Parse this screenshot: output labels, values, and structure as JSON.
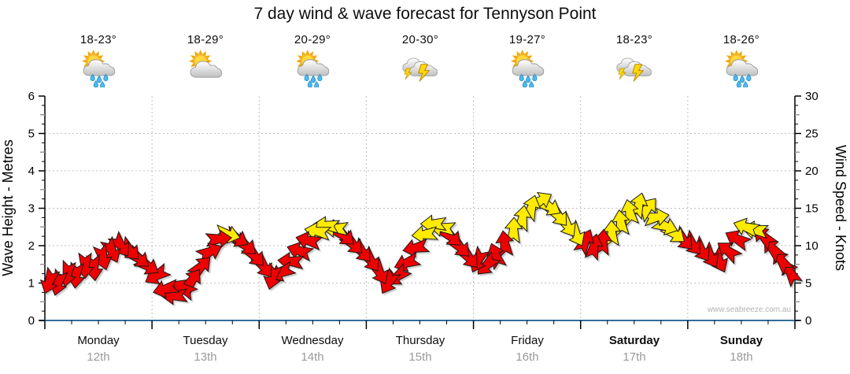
{
  "title": "7 day wind & wave forecast for Tennyson Point",
  "watermark": "www.seabreeze.com.au",
  "axes": {
    "left_label": "Wave Height - Metres",
    "right_label": "Wind Speed - Knots",
    "left_ticks": [
      0,
      1,
      2,
      3,
      4,
      5,
      6
    ],
    "right_ticks": [
      0,
      5,
      10,
      15,
      20,
      25,
      30
    ],
    "wave_range_m": [
      0,
      6
    ],
    "wind_range_knots": [
      0,
      30
    ]
  },
  "days": [
    {
      "name": "Monday",
      "date": "12th",
      "temp": "18-23°",
      "icon": "sun-cloud-rain-icon",
      "bold": false
    },
    {
      "name": "Tuesday",
      "date": "13th",
      "temp": "18-29°",
      "icon": "sun-cloud-icon",
      "bold": false
    },
    {
      "name": "Wednesday",
      "date": "14th",
      "temp": "20-29°",
      "icon": "sun-cloud-rain-icon",
      "bold": false
    },
    {
      "name": "Thursday",
      "date": "15th",
      "temp": "20-30°",
      "icon": "cloud-lightning-icon",
      "bold": false
    },
    {
      "name": "Friday",
      "date": "16th",
      "temp": "19-27°",
      "icon": "sun-cloud-rain-icon",
      "bold": false
    },
    {
      "name": "Saturday",
      "date": "17th",
      "temp": "18-23°",
      "icon": "cloud-lightning-icon",
      "bold": true
    },
    {
      "name": "Sunday",
      "date": "18th",
      "temp": "18-26°",
      "icon": "sun-cloud-rain-icon",
      "bold": true
    }
  ],
  "chart_data": {
    "type": "wind-arrow-series",
    "description": "Wind speed (knots) over 7 days, 2-hour steps, arrow rotation = wind direction; arrows turn yellow at/above threshold",
    "arrow_color_threshold_knots": 11.5,
    "arrows_format": [
      "knots",
      "direction_deg"
    ],
    "arrows": [
      [
        5.2,
        200
      ],
      [
        5.0,
        195
      ],
      [
        6.2,
        190
      ],
      [
        6.0,
        185
      ],
      [
        7.3,
        180
      ],
      [
        7.0,
        175
      ],
      [
        8.4,
        165
      ],
      [
        9.3,
        155
      ],
      [
        10.0,
        145
      ],
      [
        9.4,
        135
      ],
      [
        8.3,
        128
      ],
      [
        7.3,
        122
      ],
      [
        6.0,
        240
      ],
      [
        4.2,
        255
      ],
      [
        3.3,
        268
      ],
      [
        4.3,
        300
      ],
      [
        5.4,
        35
      ],
      [
        7.2,
        45
      ],
      [
        9.2,
        65
      ],
      [
        10.9,
        85
      ],
      [
        11.5,
        105
      ],
      [
        11.0,
        120
      ],
      [
        10.0,
        130
      ],
      [
        8.6,
        138
      ],
      [
        7.2,
        145
      ],
      [
        5.8,
        195
      ],
      [
        6.4,
        245
      ],
      [
        7.9,
        275
      ],
      [
        9.3,
        288
      ],
      [
        10.7,
        284
      ],
      [
        11.9,
        280
      ],
      [
        12.7,
        276
      ],
      [
        12.3,
        272
      ],
      [
        11.3,
        130
      ],
      [
        10.2,
        135
      ],
      [
        9.2,
        140
      ],
      [
        8.0,
        145
      ],
      [
        6.4,
        152
      ],
      [
        5.1,
        210
      ],
      [
        5.9,
        232
      ],
      [
        7.7,
        250
      ],
      [
        9.7,
        258
      ],
      [
        11.5,
        264
      ],
      [
        12.9,
        270
      ],
      [
        12.4,
        276
      ],
      [
        11.2,
        132
      ],
      [
        9.8,
        136
      ],
      [
        8.4,
        140
      ],
      [
        8.0,
        205
      ],
      [
        7.4,
        225
      ],
      [
        8.7,
        340
      ],
      [
        10.3,
        352
      ],
      [
        12.1,
        2
      ],
      [
        13.7,
        8
      ],
      [
        15.1,
        16
      ],
      [
        16.0,
        60
      ],
      [
        15.2,
        120
      ],
      [
        14.0,
        140
      ],
      [
        12.7,
        148
      ],
      [
        11.5,
        152
      ],
      [
        10.6,
        25
      ],
      [
        9.9,
        12
      ],
      [
        10.5,
        4
      ],
      [
        11.7,
        358
      ],
      [
        13.1,
        352
      ],
      [
        14.5,
        348
      ],
      [
        15.4,
        15
      ],
      [
        15.0,
        40
      ],
      [
        13.8,
        80
      ],
      [
        12.6,
        110
      ],
      [
        11.6,
        128
      ],
      [
        10.8,
        138
      ],
      [
        10.2,
        142
      ],
      [
        9.4,
        146
      ],
      [
        8.6,
        150
      ],
      [
        8.0,
        154
      ],
      [
        9.3,
        308
      ],
      [
        10.9,
        298
      ],
      [
        12.5,
        288
      ],
      [
        12.1,
        278
      ],
      [
        11.2,
        315
      ],
      [
        9.6,
        320
      ],
      [
        8.0,
        326
      ],
      [
        6.4,
        332
      ]
    ],
    "colors": {
      "arrow_low": "#ee0000",
      "arrow_high": "#ffeb00",
      "arrow_outline": "#1a1a1a",
      "gridline": "#bfbfbf",
      "bottom_axis": "#336e99",
      "axis": "#000000",
      "minor_tick_gray": "#9a9a9a",
      "date_gray": "#9a9a9a"
    }
  }
}
